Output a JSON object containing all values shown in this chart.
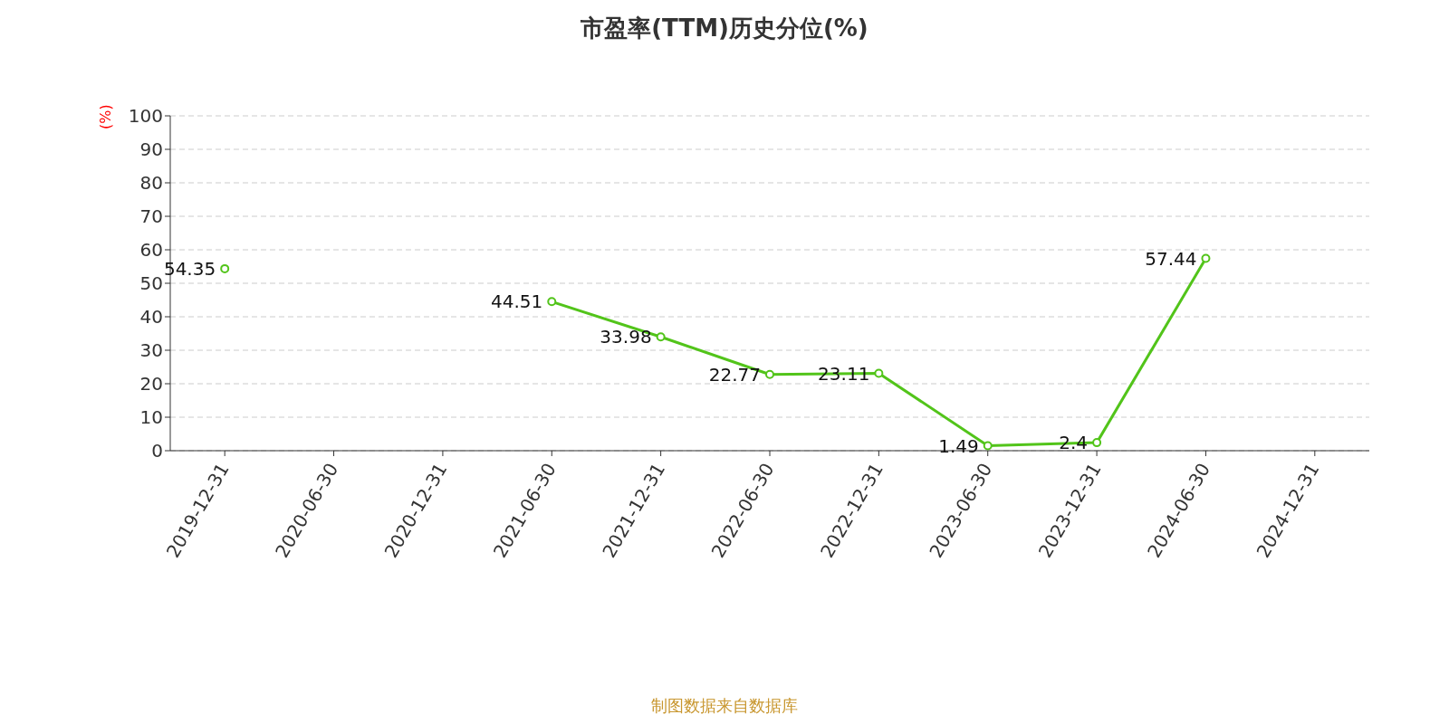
{
  "chart_data": {
    "type": "line",
    "title": "市盈率(TTM)历史分位(%)",
    "ylabel": "(%)",
    "categories": [
      "2019-12-31",
      "2020-06-30",
      "2020-12-31",
      "2021-06-30",
      "2021-12-31",
      "2022-06-30",
      "2022-12-31",
      "2023-06-30",
      "2023-12-31",
      "2024-06-30",
      "2024-12-31"
    ],
    "series": [
      {
        "color": "#52c41a",
        "values": [
          54.35,
          null,
          null,
          44.51,
          33.98,
          22.77,
          23.11,
          1.49,
          2.4,
          57.44,
          null
        ]
      }
    ],
    "ylim": [
      0,
      100
    ],
    "yticks": [
      0,
      10,
      20,
      30,
      40,
      50,
      60,
      70,
      80,
      90,
      100
    ],
    "grid": "y",
    "marker": "circle",
    "line_style": "solid",
    "data_labels": true,
    "annotations": [
      "制图数据来自数据库"
    ]
  }
}
